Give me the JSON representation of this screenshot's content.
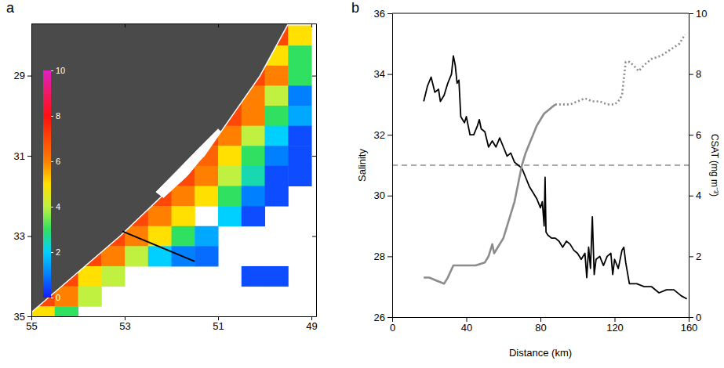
{
  "chart_data": [
    {
      "type": "map",
      "title": "a",
      "x": [
        54.75,
        54.25,
        53.75,
        53.25,
        52.75,
        52.25,
        51.75,
        51.25,
        50.75,
        50.25,
        49.75,
        49.25
      ],
      "y": [
        28.0,
        28.5,
        29.0,
        29.5,
        30.0,
        30.5,
        31.0,
        31.5,
        32.0,
        32.5,
        33.0,
        33.5,
        34.0,
        34.5,
        35.0
      ],
      "values": [
        [
          null,
          null,
          null,
          null,
          null,
          null,
          null,
          null,
          null,
          null,
          7,
          5
        ],
        [
          null,
          null,
          null,
          null,
          null,
          null,
          null,
          null,
          null,
          7,
          5,
          3
        ],
        [
          null,
          null,
          null,
          null,
          null,
          null,
          null,
          null,
          null,
          7,
          6,
          3
        ],
        [
          null,
          null,
          null,
          null,
          null,
          null,
          null,
          null,
          7,
          6,
          4,
          1
        ],
        [
          null,
          null,
          null,
          null,
          null,
          null,
          null,
          null,
          7,
          6,
          3,
          1.5
        ],
        [
          null,
          null,
          null,
          null,
          null,
          null,
          null,
          7,
          6,
          4,
          2,
          0.5
        ],
        [
          null,
          null,
          null,
          null,
          null,
          null,
          7,
          6.5,
          5,
          3,
          1,
          0.5
        ],
        [
          null,
          null,
          null,
          null,
          null,
          null,
          7,
          6,
          4,
          2.5,
          0.5,
          0.5
        ],
        [
          null,
          null,
          null,
          null,
          null,
          7,
          6,
          5,
          3,
          1,
          0.5,
          null
        ],
        [
          null,
          null,
          null,
          null,
          7,
          6,
          5,
          null,
          2,
          0.5,
          null,
          null
        ],
        [
          null,
          null,
          null,
          7,
          6,
          5,
          3,
          1.5,
          null,
          null,
          null,
          null
        ],
        [
          null,
          null,
          7,
          6,
          4,
          2,
          1,
          0.8,
          null,
          null,
          null,
          null
        ],
        [
          null,
          7,
          5,
          4,
          null,
          null,
          null,
          null,
          null,
          0.5,
          0.5,
          null
        ],
        [
          7,
          6,
          4,
          null,
          null,
          null,
          null,
          null,
          null,
          null,
          null,
          null
        ],
        [
          5,
          3,
          null,
          null,
          null,
          null,
          null,
          null,
          null,
          null,
          null,
          null
        ]
      ],
      "xlim": [
        55,
        48.9
      ],
      "ylim": [
        27.7,
        35
      ],
      "xticks": [
        55,
        53,
        51,
        49
      ],
      "yticks": [
        29,
        31,
        33,
        35
      ],
      "colorbar": {
        "range": [
          0,
          10
        ],
        "ticks": [
          0,
          2,
          4,
          6,
          8,
          10
        ]
      },
      "land": {
        "lon": [
          55.3,
          49.4,
          50.1,
          50.7,
          51.3,
          52.2,
          53.1,
          54.1,
          55.3
        ],
        "lat": [
          27.5,
          27.5,
          29,
          30,
          31,
          32,
          33,
          34,
          35.2
        ]
      },
      "lagoon": {
        "lon": [
          52.33,
          51.83,
          51.42,
          51.0,
          50.95,
          51.25,
          51.67,
          52.17
        ],
        "lat": [
          31.9,
          31.31,
          30.82,
          30.33,
          30.39,
          30.92,
          31.51,
          32.04
        ]
      },
      "transect": {
        "lon": [
          53.05,
          51.5
        ],
        "lat": [
          32.88,
          33.63
        ]
      }
    },
    {
      "type": "line",
      "title": "b",
      "xlabel": "Distance (km)",
      "ylabel": "Salinity",
      "y2label": "CSAT (mg m⁻³)",
      "xlim": [
        0,
        160
      ],
      "xticks": [
        0,
        40,
        80,
        120,
        160
      ],
      "ylim": [
        26,
        36
      ],
      "yticks": [
        26,
        28,
        30,
        32,
        34,
        36
      ],
      "y2lim": [
        0,
        10
      ],
      "y2ticks": [
        0,
        2,
        4,
        6,
        8,
        10
      ],
      "reference_lines": [
        {
          "y": 31,
          "line_style": "dashed",
          "color": "#555555"
        }
      ],
      "series": [
        {
          "color": "#000000",
          "axis": "y2",
          "line_style": "solid",
          "x": [
            17,
            19,
            21,
            23,
            25,
            26,
            28,
            30,
            32,
            33,
            34,
            35,
            36,
            37,
            39,
            40,
            42,
            44,
            46,
            47,
            48,
            50,
            52,
            54,
            56,
            58,
            60,
            62,
            64,
            66,
            68,
            70,
            72,
            74,
            76,
            78,
            80,
            81,
            82,
            82.5,
            83,
            84,
            86,
            88,
            90,
            92,
            94,
            96,
            98,
            100,
            102,
            104,
            105,
            106,
            107,
            108,
            109,
            110,
            112,
            114,
            116,
            118,
            119,
            120,
            122,
            124,
            125,
            126,
            128,
            132,
            136,
            140,
            144,
            148,
            152,
            156,
            159
          ],
          "values": [
            7.1,
            7.6,
            7.9,
            7.4,
            7.5,
            7.1,
            7.3,
            7.7,
            8.0,
            8.6,
            8.3,
            7.7,
            7.8,
            6.6,
            6.4,
            6.6,
            6.0,
            6.0,
            6.3,
            6.5,
            6.2,
            6.1,
            5.6,
            5.8,
            5.6,
            5.9,
            5.6,
            5.3,
            5.4,
            5.1,
            5.0,
            4.9,
            4.6,
            4.3,
            4.1,
            3.9,
            3.6,
            3.8,
            3.0,
            4.6,
            2.8,
            2.7,
            2.6,
            2.6,
            2.5,
            2.3,
            2.5,
            2.4,
            2.2,
            2.1,
            1.9,
            2.1,
            1.3,
            2.3,
            1.6,
            3.3,
            1.4,
            1.9,
            2.0,
            1.7,
            2.0,
            2.1,
            1.4,
            1.9,
            1.6,
            2.2,
            2.3,
            1.8,
            1.1,
            1.1,
            1.0,
            1.0,
            0.8,
            0.9,
            0.9,
            0.7,
            0.6
          ]
        },
        {
          "color": "#8c8c8c",
          "axis": "y",
          "line_style": "solid",
          "x": [
            17,
            20,
            24,
            28,
            30,
            33,
            36,
            40,
            45,
            50,
            52,
            54,
            55,
            57,
            60,
            63,
            66,
            68,
            70,
            72,
            74,
            76,
            78,
            80,
            82,
            84,
            86,
            88
          ],
          "values": [
            27.3,
            27.3,
            27.2,
            27.1,
            27.3,
            27.7,
            27.7,
            27.7,
            27.7,
            27.8,
            28.0,
            28.4,
            28.1,
            28.3,
            28.6,
            29.2,
            29.8,
            30.4,
            31.0,
            31.4,
            31.7,
            32.0,
            32.3,
            32.5,
            32.7,
            32.8,
            32.9,
            33.0
          ]
        },
        {
          "color": "#8c8c8c",
          "axis": "y",
          "line_style": "dotted",
          "x": [
            88,
            92,
            96,
            100,
            104,
            108,
            112,
            116,
            120,
            122,
            124,
            126,
            128,
            130,
            133,
            136,
            140,
            145,
            150,
            155,
            158
          ],
          "values": [
            33.0,
            33.0,
            33.0,
            33.1,
            33.2,
            33.1,
            33.1,
            33.0,
            33.0,
            33.1,
            33.3,
            34.4,
            34.4,
            34.3,
            34.1,
            34.3,
            34.5,
            34.6,
            34.8,
            35.0,
            35.3
          ]
        }
      ]
    }
  ]
}
